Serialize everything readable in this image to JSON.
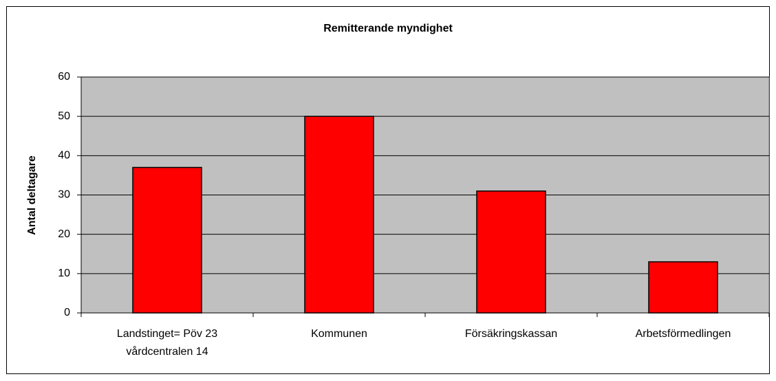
{
  "chart_data": {
    "type": "bar",
    "title": "Remitterande myndighet",
    "y_label": "Antal deltagare",
    "categories": [
      "Landstinget= Pöv 23 vårdcentralen 14",
      "Kommunen",
      "Försäkringskassan",
      "Arbetsförmedlingen"
    ],
    "values": [
      37,
      50,
      31,
      13
    ],
    "color": "#ff0000",
    "ylim": [
      0,
      60
    ],
    "yticks": [
      0,
      10,
      20,
      30,
      40,
      50,
      60
    ],
    "grid": true
  }
}
